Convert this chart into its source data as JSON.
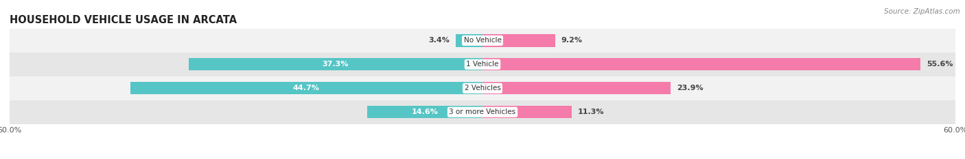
{
  "title": "HOUSEHOLD VEHICLE USAGE IN ARCATA",
  "source": "Source: ZipAtlas.com",
  "categories": [
    "No Vehicle",
    "1 Vehicle",
    "2 Vehicles",
    "3 or more Vehicles"
  ],
  "owner_values": [
    3.4,
    37.3,
    44.7,
    14.6
  ],
  "renter_values": [
    9.2,
    55.6,
    23.9,
    11.3
  ],
  "max_value": 60.0,
  "owner_color": "#56C5C5",
  "renter_color": "#F47BAA",
  "owner_color_light": "#A8DEDE",
  "renter_color_light": "#F9BBD2",
  "row_bg_light": "#F2F2F2",
  "row_bg_dark": "#E6E6E6",
  "title_fontsize": 10.5,
  "label_fontsize": 8.0,
  "tick_fontsize": 8.0,
  "bar_height": 0.52,
  "figsize": [
    14.06,
    2.33
  ],
  "dpi": 100
}
